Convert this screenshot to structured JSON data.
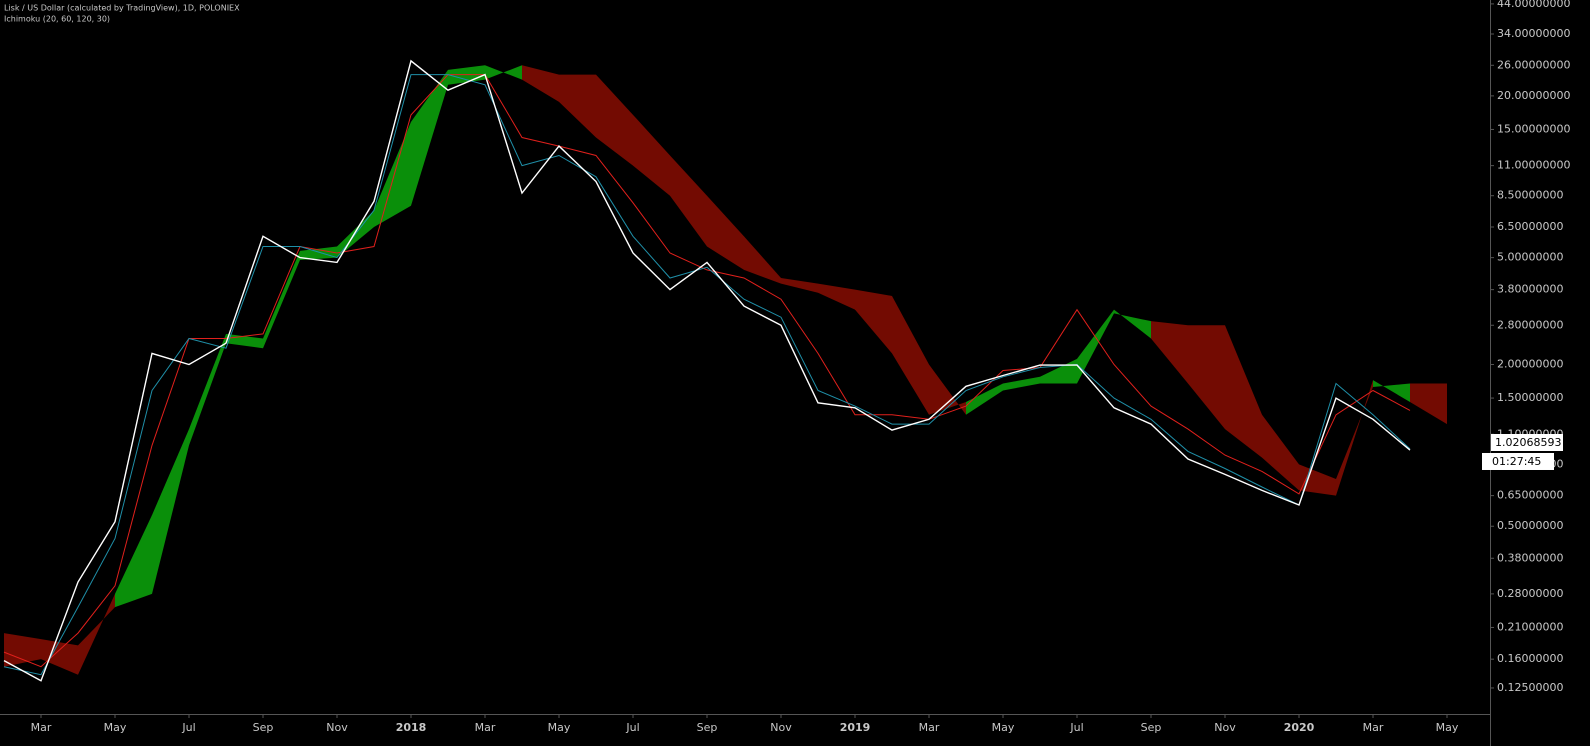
{
  "chart_data": {
    "type": "line",
    "title": "Lisk / US Dollar (calculated by TradingView), 1D, POLONIEX",
    "subtitle": "Ichimoku (20, 60, 120, 30)",
    "log_scale": true,
    "categories": [
      null,
      "Mar",
      null,
      "May",
      null,
      "Jul",
      null,
      "Sep",
      null,
      "Nov",
      null,
      "2018",
      null,
      "Mar",
      null,
      "May",
      null,
      "Jul",
      null,
      "Sep",
      null,
      "Nov",
      null,
      "2019",
      null,
      "Mar",
      null,
      "May",
      null,
      "Jul",
      null,
      "Sep",
      null,
      "Nov",
      null,
      "2020",
      null,
      "Mar",
      null,
      "May",
      null
    ],
    "series": [
      {
        "color": "#ffffff",
        "values": [
          0.158,
          0.133,
          0.31,
          0.52,
          2.2,
          2.0,
          2.4,
          6.0,
          5.0,
          4.8,
          8.1,
          27,
          21,
          24,
          8.7,
          13,
          9.6,
          5.2,
          3.8,
          4.8,
          3.3,
          2.8,
          1.44,
          1.38,
          1.14,
          1.25,
          1.66,
          1.82,
          1.99,
          1.99,
          1.38,
          1.2,
          0.89,
          0.78,
          0.68,
          0.6,
          1.5,
          1.25,
          0.96,
          null,
          null
        ]
      },
      {
        "color": "#1f8fa8",
        "values": [
          0.15,
          0.14,
          0.25,
          0.45,
          1.6,
          2.5,
          2.3,
          5.5,
          5.5,
          5.0,
          7.5,
          24,
          24,
          22,
          11,
          12,
          10,
          6,
          4.2,
          4.6,
          3.5,
          3.0,
          1.6,
          1.4,
          1.2,
          1.2,
          1.6,
          1.8,
          1.95,
          2.0,
          1.5,
          1.25,
          0.95,
          0.82,
          0.7,
          0.6,
          1.7,
          1.3,
          0.97,
          null,
          null
        ]
      },
      {
        "color": "#e0201c",
        "values": [
          0.17,
          0.15,
          0.2,
          0.3,
          1.0,
          2.5,
          2.5,
          2.6,
          5.5,
          5.2,
          5.5,
          17,
          24,
          24,
          14,
          13,
          12,
          8,
          5.2,
          4.5,
          4.2,
          3.5,
          2.2,
          1.3,
          1.3,
          1.25,
          1.4,
          1.9,
          1.95,
          3.2,
          2.0,
          1.4,
          1.15,
          0.92,
          0.8,
          0.66,
          1.3,
          1.6,
          1.35,
          null,
          null
        ]
      }
    ],
    "cloud": {
      "up_color": "#0a8f0a",
      "down_color": "#730b02",
      "span_a": [
        0.15,
        0.16,
        0.14,
        0.28,
        0.55,
        1.15,
        2.6,
        2.5,
        5.3,
        5.5,
        7.5,
        16,
        25,
        26,
        23,
        19,
        14,
        11,
        8.5,
        5.5,
        4.5,
        4.0,
        3.7,
        3.2,
        2.2,
        1.3,
        1.45,
        1.7,
        1.8,
        2.1,
        3.2,
        2.5,
        1.7,
        1.15,
        0.9,
        0.68,
        0.65,
        1.75,
        1.45,
        1.2,
        null
      ],
      "span_b": [
        0.2,
        0.19,
        0.18,
        0.25,
        0.28,
        1.0,
        2.4,
        2.3,
        4.9,
        5.0,
        6.5,
        7.8,
        22,
        23,
        26,
        24,
        24,
        17,
        12,
        8.5,
        6.0,
        4.2,
        4.0,
        3.8,
        3.6,
        2.0,
        1.3,
        1.6,
        1.7,
        1.7,
        3.1,
        2.9,
        2.8,
        2.8,
        1.3,
        0.85,
        0.75,
        1.65,
        1.7,
        1.7,
        null
      ]
    },
    "ylim": [
      0.1,
      45.5
    ],
    "yticks": [
      {
        "value": 44,
        "label": "44.00000000"
      },
      {
        "value": 34,
        "label": "34.00000000"
      },
      {
        "value": 26,
        "label": "26.00000000"
      },
      {
        "value": 20,
        "label": "20.00000000"
      },
      {
        "value": 15,
        "label": "15.00000000"
      },
      {
        "value": 11,
        "label": "11.00000000"
      },
      {
        "value": 8.5,
        "label": "8.50000000"
      },
      {
        "value": 6.5,
        "label": "6.50000000"
      },
      {
        "value": 5,
        "label": "5.00000000"
      },
      {
        "value": 3.8,
        "label": "3.80000000"
      },
      {
        "value": 2.8,
        "label": "2.80000000"
      },
      {
        "value": 2,
        "label": "2.00000000"
      },
      {
        "value": 1.5,
        "label": "1.50000000"
      },
      {
        "value": 1.1,
        "label": "1.10000000"
      },
      {
        "value": 0.85,
        "label": "0.85000000"
      },
      {
        "value": 0.65,
        "label": "0.65000000"
      },
      {
        "value": 0.5,
        "label": "0.50000000"
      },
      {
        "value": 0.38,
        "label": "0.38000000"
      },
      {
        "value": 0.28,
        "label": "0.28000000"
      },
      {
        "value": 0.21,
        "label": "0.21000000"
      },
      {
        "value": 0.16,
        "label": "0.16000000"
      },
      {
        "value": 0.125,
        "label": "0.12500000"
      }
    ],
    "last_price": 1.02068593,
    "countdown": "01:27:45"
  }
}
